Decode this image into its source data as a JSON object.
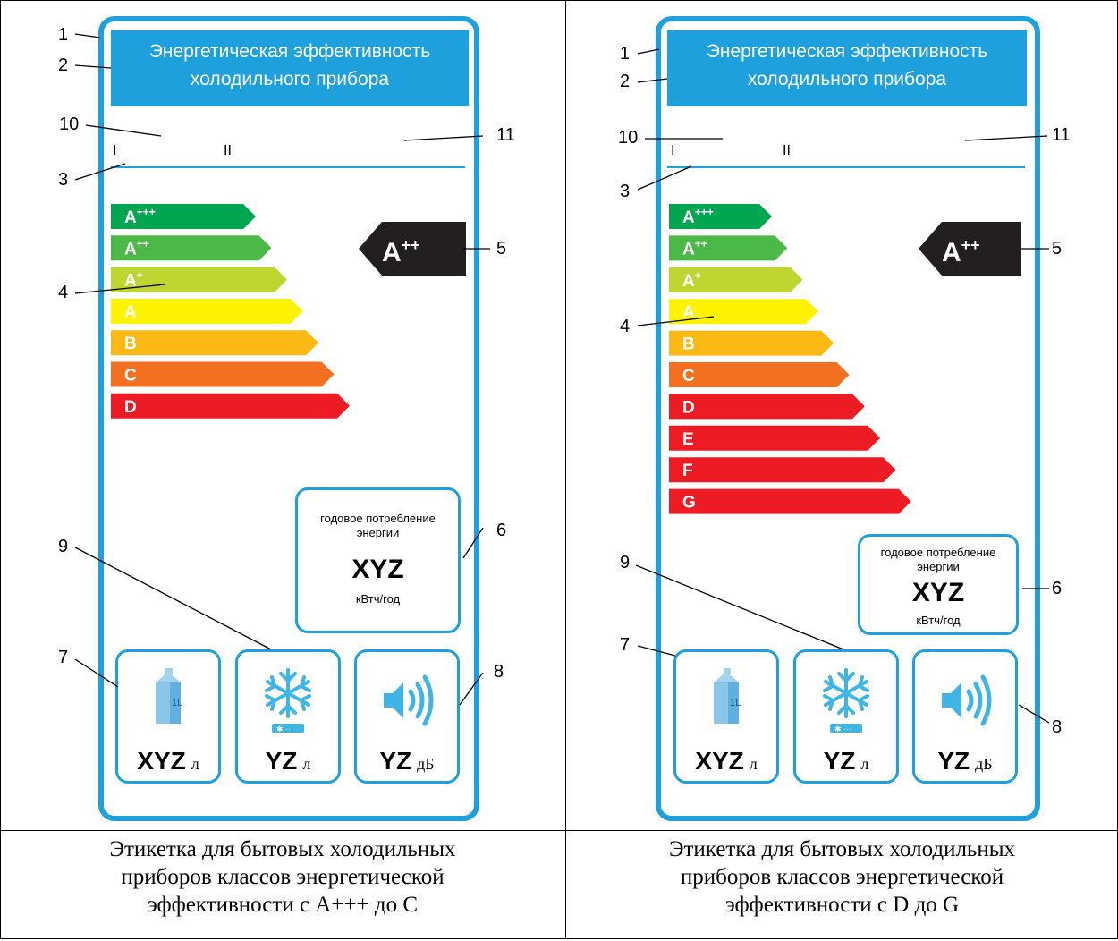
{
  "labels": [
    {
      "header_line1": "Энергетическая эффективность",
      "header_line2": "холодильного прибора",
      "roman_1": "I",
      "roman_2": "II",
      "classes": [
        {
          "name": "A",
          "sup": "+++",
          "color": "#00a54f"
        },
        {
          "name": "A",
          "sup": "++",
          "color": "#4cb847"
        },
        {
          "name": "A",
          "sup": "+",
          "color": "#bed62f"
        },
        {
          "name": "A",
          "sup": "",
          "color": "#fff200"
        },
        {
          "name": "B",
          "sup": "",
          "color": "#fdb913"
        },
        {
          "name": "C",
          "sup": "",
          "color": "#f37021"
        },
        {
          "name": "D",
          "sup": "",
          "color": "#ed1c24"
        }
      ],
      "indicator": {
        "name": "A",
        "sup": "++"
      },
      "consumption": {
        "title_line1": "годовое потребление",
        "title_line2": "энергии",
        "value": "XYZ",
        "unit": "кВтч/год"
      },
      "icons": [
        {
          "value": "XYZ",
          "unit": "л"
        },
        {
          "value": "YZ",
          "unit": "л"
        },
        {
          "value": "YZ",
          "unit": "дБ"
        }
      ],
      "callouts": [
        "1",
        "2",
        "10",
        "11",
        "3",
        "4",
        "5",
        "6",
        "7",
        "8",
        "9"
      ],
      "caption": [
        "Этикетка для бытовых холодильных",
        "приборов классов энергетической",
        "эффективности с A+++ до C"
      ]
    },
    {
      "header_line1": "Энергетическая эффективность",
      "header_line2": "холодильного прибора",
      "roman_1": "I",
      "roman_2": "II",
      "classes": [
        {
          "name": "A",
          "sup": "+++",
          "color": "#00a54f"
        },
        {
          "name": "A",
          "sup": "++",
          "color": "#4cb847"
        },
        {
          "name": "A",
          "sup": "+",
          "color": "#bed62f"
        },
        {
          "name": "A",
          "sup": "",
          "color": "#fff200"
        },
        {
          "name": "B",
          "sup": "",
          "color": "#fdb913"
        },
        {
          "name": "C",
          "sup": "",
          "color": "#f37021"
        },
        {
          "name": "D",
          "sup": "",
          "color": "#ed1c24"
        },
        {
          "name": "E",
          "sup": "",
          "color": "#ed1c24"
        },
        {
          "name": "F",
          "sup": "",
          "color": "#ed1c24"
        },
        {
          "name": "G",
          "sup": "",
          "color": "#ed1c24"
        }
      ],
      "indicator": {
        "name": "A",
        "sup": "++"
      },
      "consumption": {
        "title_line1": "годовое потребление",
        "title_line2": "энергии",
        "value": "XYZ",
        "unit": "кВтч/год"
      },
      "icons": [
        {
          "value": "XYZ",
          "unit": "л"
        },
        {
          "value": "YZ",
          "unit": "л"
        },
        {
          "value": "YZ",
          "unit": "дБ"
        }
      ],
      "callouts": [
        "1",
        "2",
        "10",
        "11",
        "3",
        "4",
        "5",
        "6",
        "7",
        "8",
        "9"
      ],
      "caption": [
        "Этикетка для бытовых холодильных",
        "приборов классов энергетической",
        "эффективности с D до G"
      ]
    }
  ]
}
